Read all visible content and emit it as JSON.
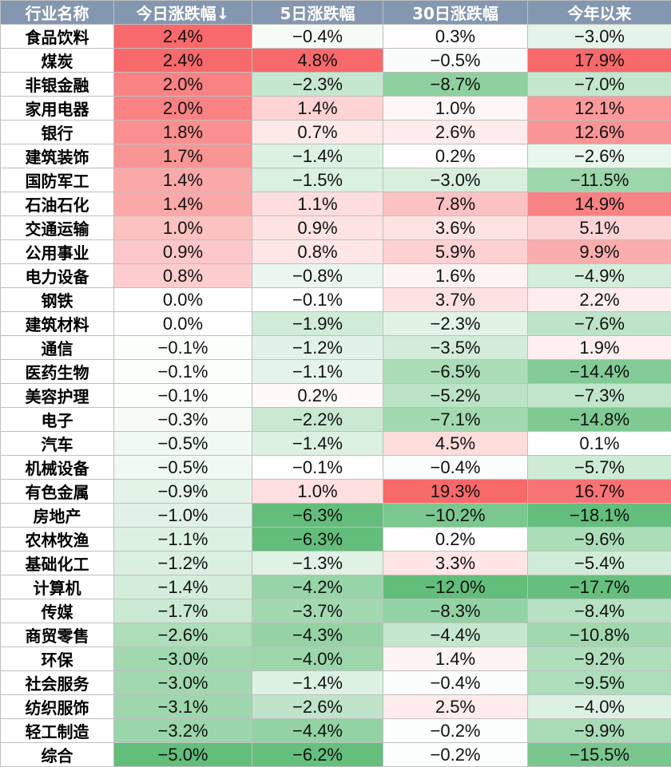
{
  "chart_data": {
    "type": "table",
    "columns": [
      "行业名称",
      "今日涨跌幅↓",
      "5日涨跌幅",
      "30日涨跌幅",
      "今年以来"
    ],
    "rows": [
      {
        "name": "食品饮料",
        "values": [
          2.4,
          -0.4,
          0.3,
          -3.0
        ]
      },
      {
        "name": "煤炭",
        "values": [
          2.4,
          4.8,
          -0.5,
          17.9
        ]
      },
      {
        "name": "非银金融",
        "values": [
          2.0,
          -2.3,
          -8.7,
          -7.0
        ]
      },
      {
        "name": "家用电器",
        "values": [
          2.0,
          1.4,
          1.0,
          12.1
        ]
      },
      {
        "name": "银行",
        "values": [
          1.8,
          0.7,
          2.6,
          12.6
        ]
      },
      {
        "name": "建筑装饰",
        "values": [
          1.7,
          -1.4,
          0.2,
          -2.6
        ]
      },
      {
        "name": "国防军工",
        "values": [
          1.4,
          -1.5,
          -3.0,
          -11.5
        ]
      },
      {
        "name": "石油石化",
        "values": [
          1.4,
          1.1,
          7.8,
          14.9
        ]
      },
      {
        "name": "交通运输",
        "values": [
          1.0,
          0.9,
          3.6,
          5.1
        ]
      },
      {
        "name": "公用事业",
        "values": [
          0.9,
          0.8,
          5.9,
          9.9
        ]
      },
      {
        "name": "电力设备",
        "values": [
          0.8,
          -0.8,
          1.6,
          -4.9
        ]
      },
      {
        "name": "钢铁",
        "values": [
          0.0,
          -0.1,
          3.7,
          2.2
        ]
      },
      {
        "name": "建筑材料",
        "values": [
          0.0,
          -1.9,
          -2.3,
          -7.6
        ]
      },
      {
        "name": "通信",
        "values": [
          -0.1,
          -1.2,
          -3.5,
          1.9
        ]
      },
      {
        "name": "医药生物",
        "values": [
          -0.1,
          -1.1,
          -6.5,
          -14.4
        ]
      },
      {
        "name": "美容护理",
        "values": [
          -0.1,
          0.2,
          -5.2,
          -7.3
        ]
      },
      {
        "name": "电子",
        "values": [
          -0.3,
          -2.2,
          -7.1,
          -14.8
        ]
      },
      {
        "name": "汽车",
        "values": [
          -0.5,
          -1.4,
          4.5,
          0.1
        ]
      },
      {
        "name": "机械设备",
        "values": [
          -0.5,
          -0.1,
          -0.4,
          -5.7
        ]
      },
      {
        "name": "有色金属",
        "values": [
          -0.9,
          1.0,
          19.3,
          16.7
        ]
      },
      {
        "name": "房地产",
        "values": [
          -1.0,
          -6.3,
          -10.2,
          -18.1
        ]
      },
      {
        "name": "农林牧渔",
        "values": [
          -1.1,
          -6.3,
          0.2,
          -9.6
        ]
      },
      {
        "name": "基础化工",
        "values": [
          -1.2,
          -1.3,
          3.3,
          -5.4
        ]
      },
      {
        "name": "计算机",
        "values": [
          -1.4,
          -4.2,
          -12.0,
          -17.7
        ]
      },
      {
        "name": "传媒",
        "values": [
          -1.7,
          -3.7,
          -8.3,
          -8.4
        ]
      },
      {
        "name": "商贸零售",
        "values": [
          -2.6,
          -4.3,
          -4.4,
          -10.8
        ]
      },
      {
        "name": "环保",
        "values": [
          -3.0,
          -4.0,
          1.4,
          -9.2
        ]
      },
      {
        "name": "社会服务",
        "values": [
          -3.0,
          -1.4,
          -0.4,
          -9.5
        ]
      },
      {
        "name": "纺织服饰",
        "values": [
          -3.1,
          -2.6,
          2.5,
          -4.0
        ]
      },
      {
        "name": "轻工制造",
        "values": [
          -3.2,
          -4.4,
          -0.2,
          -9.9
        ]
      },
      {
        "name": "综合",
        "values": [
          -5.0,
          -6.2,
          -0.2,
          -15.5
        ]
      }
    ]
  },
  "colors": {
    "header_bg": "#8497b0",
    "header_text": "#ffffff",
    "positive_max": "#f8696b",
    "negative_max": "#63be7b",
    "neutral": "#ffffff",
    "grid": "#bfbfbf"
  }
}
